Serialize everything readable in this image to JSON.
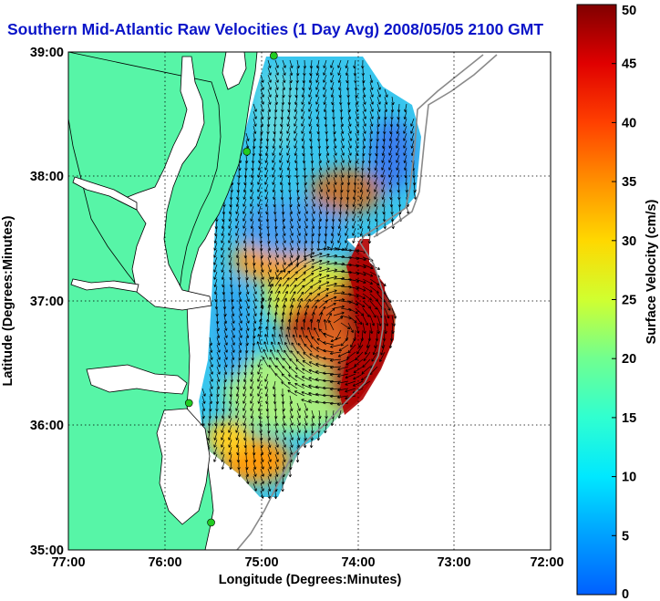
{
  "title": "Southern Mid-Atlantic Raw Velocities (1 Day Avg) 2008/05/05 2100 GMT",
  "x_axis": {
    "label": "Longitude (Degrees:Minutes)",
    "ticks": [
      "77:00",
      "76:00",
      "75:00",
      "74:00",
      "73:00",
      "72:00"
    ]
  },
  "y_axis": {
    "label": "Latitude (Degrees:Minutes)",
    "ticks": [
      "39:00",
      "38:00",
      "37:00",
      "36:00",
      "35:00"
    ]
  },
  "colorbar": {
    "label": "Surface Velocity (cm/s)",
    "min": 0,
    "max": 50,
    "ticks": [
      "50",
      "45",
      "40",
      "35",
      "30",
      "25",
      "20",
      "15",
      "10",
      "5",
      "0"
    ],
    "colors": [
      "#0000ff",
      "#00c0ff",
      "#00ffff",
      "#40ffc0",
      "#80ff80",
      "#ffff00",
      "#ffc000",
      "#ff8000",
      "#ff4000",
      "#ff0000",
      "#800000"
    ]
  },
  "map": {
    "extent": {
      "lon_min": -77,
      "lon_max": -72,
      "lat_min": 35,
      "lat_max": 39
    },
    "land_color": "#57f5a7",
    "ocean_color": "#ffffff",
    "gridlines": "dotted",
    "station_marker_color": "#22cc22",
    "stations_lonlat": [
      [
        -74.87,
        38.97
      ],
      [
        -75.15,
        38.2
      ],
      [
        -75.75,
        36.18
      ],
      [
        -75.52,
        35.22
      ]
    ]
  }
}
